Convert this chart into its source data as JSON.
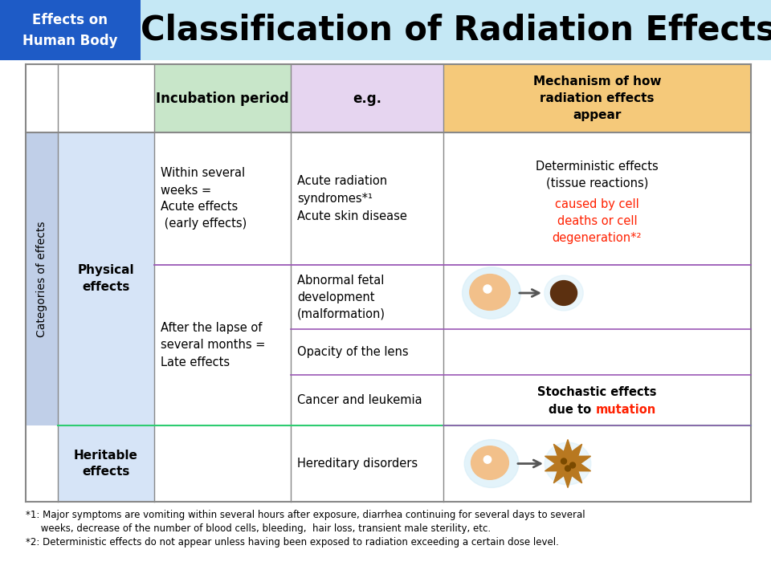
{
  "title": "Classification of Radiation Effects",
  "title_fontsize": 30,
  "header_box_bg": "#1E5BC6",
  "header_box_text_color": "#FFFFFF",
  "top_bar_bg_left": "#ADD8E6",
  "top_bar_bg_right": "#E8F4FB",
  "col_header_incubation_bg": "#C8E6C9",
  "col_header_eg_bg": "#E6D5F0",
  "col_header_mechanism_bg": "#F5C97A",
  "left_sidebar_bg": "#C0CFE8",
  "physical_cell_bg": "#D6E4F7",
  "heritable_cell_bg": "#D6E4F7",
  "data_cell_bg": "#FFFFFF",
  "border_gray": "#888888",
  "border_purple": "#9B59B6",
  "border_green": "#2ECC71",
  "red_color": "#FF2000",
  "footnote1": "*1: Major symptoms are vomiting within several hours after exposure, diarrhea continuing for several days to several",
  "footnote1b": "     weeks, decrease of the number of blood cells, bleeding,  hair loss, transient male sterility, etc.",
  "footnote2": "*2: Deterministic effects do not appear unless having been exposed to radiation exceeding a certain dose level."
}
